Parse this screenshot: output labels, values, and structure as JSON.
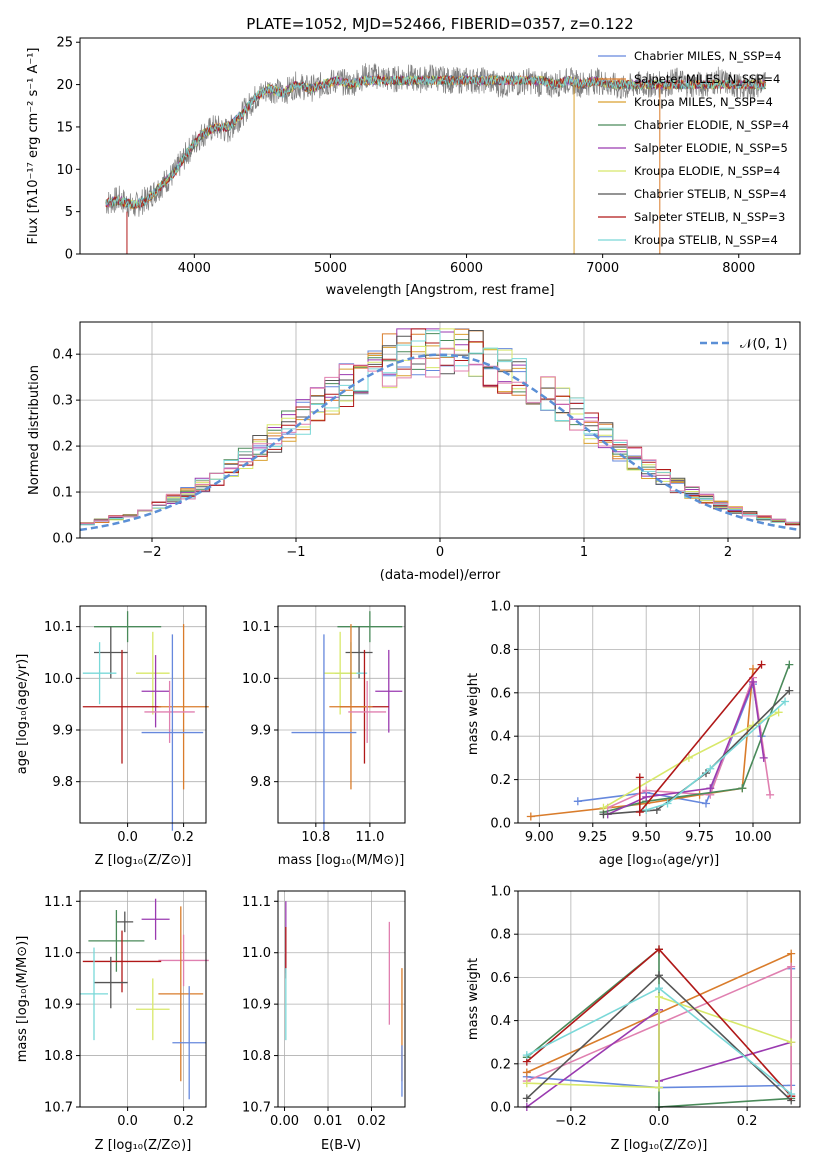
{
  "title": "PLATE=1052, MJD=52466, FIBERID=0357, z=0.122",
  "panels": {
    "spectrum": {
      "xlabel": "wavelength [Angstrom, rest frame]",
      "ylabel": "Flux [fλ10⁻¹⁷ erg cm⁻² s⁻¹ A⁻¹]",
      "xticks": [
        "4000",
        "5000",
        "6000",
        "7000",
        "8000"
      ],
      "yticks": [
        "0",
        "5",
        "10",
        "15",
        "20",
        "25"
      ]
    },
    "residuals": {
      "xlabel": "(data-model)/error",
      "ylabel": "Normed distribution",
      "xticks": [
        "−2",
        "−1",
        "0",
        "1",
        "2"
      ],
      "yticks": [
        "0.0",
        "0.1",
        "0.2",
        "0.3",
        "0.4"
      ],
      "legend_label": "𝒩(0, 1)"
    },
    "age_vs_Z": {
      "xlabel": "Z [log₁₀(Z/Z⊙)]",
      "ylabel": "age  [log₁₀(age/yr)]",
      "xticks": [
        "0.0",
        "0.2"
      ],
      "yticks": [
        "9.8",
        "9.9",
        "10.0",
        "10.1"
      ]
    },
    "age_vs_mass": {
      "xlabel": "mass [log₁₀(M/M⊙)]",
      "xticks": [
        "10.8",
        "11.0"
      ],
      "yticks": [
        "9.8",
        "9.9",
        "10.0",
        "10.1"
      ]
    },
    "weight_vs_age": {
      "xlabel": "age  [log₁₀(age/yr)]",
      "ylabel": "mass weight",
      "xticks": [
        "9.00",
        "9.25",
        "9.50",
        "9.75",
        "10.00"
      ],
      "yticks": [
        "0.0",
        "0.2",
        "0.4",
        "0.6",
        "0.8",
        "1.0"
      ]
    },
    "mass_vs_Z": {
      "xlabel": "Z [log₁₀(Z/Z⊙)]",
      "ylabel": "mass [log₁₀(M/M⊙)]",
      "xticks": [
        "0.0",
        "0.2"
      ],
      "yticks": [
        "10.7",
        "10.8",
        "10.9",
        "11.0",
        "11.1"
      ]
    },
    "mass_vs_ebv": {
      "xlabel": "E(B-V)",
      "xticks": [
        "0.00",
        "0.01",
        "0.02"
      ],
      "yticks": [
        "10.7",
        "10.8",
        "10.9",
        "11.0",
        "11.1"
      ]
    },
    "weight_vs_Z": {
      "xlabel": "Z [log₁₀(Z/Z⊙)]",
      "ylabel": "mass weight",
      "xticks": [
        "−0.2",
        "0.0",
        "0.2"
      ],
      "yticks": [
        "0.0",
        "0.2",
        "0.4",
        "0.6",
        "0.8",
        "1.0"
      ]
    }
  },
  "chart_data": [
    {
      "type": "line",
      "title": "PLATE=1052, MJD=52466, FIBERID=0357, z=0.122",
      "xlabel": "wavelength [Angstrom, rest frame]",
      "ylabel": "Flux [fλ10⁻¹⁷ erg cm⁻² s⁻¹ A⁻¹]",
      "xlim": [
        3160,
        8450
      ],
      "ylim": [
        0,
        25.5
      ],
      "legend_position": "top-right",
      "data_color": "#808080",
      "data": {
        "x": [
          3350,
          3450,
          3550,
          3650,
          3750,
          3850,
          3950,
          4050,
          4150,
          4250,
          4350,
          4450,
          4550,
          4650,
          4750,
          4850,
          4950,
          5050,
          5150,
          5250,
          5350,
          5450,
          5550,
          5650,
          5750,
          5850,
          5950,
          6050,
          6150,
          6250,
          6350,
          6450,
          6550,
          6650,
          6750,
          6850,
          6950,
          7050,
          7150,
          7250,
          7350,
          7450,
          7550,
          7650,
          7750,
          7850,
          7950,
          8050,
          8150,
          8200
        ],
        "y": [
          6.0,
          6.5,
          5.5,
          6.5,
          8.0,
          9.5,
          12.0,
          14.0,
          15.0,
          14.5,
          16.5,
          18.5,
          19.5,
          19.0,
          20.0,
          19.5,
          20.0,
          20.5,
          20.0,
          21.0,
          21.0,
          20.5,
          21.0,
          20.5,
          21.0,
          20.5,
          20.5,
          20.5,
          20.5,
          20.0,
          20.0,
          20.5,
          20.0,
          20.0,
          20.5,
          20.0,
          20.5,
          20.0,
          19.5,
          20.0,
          20.0,
          20.0,
          20.5,
          20.0,
          20.0,
          20.5,
          20.0,
          19.5,
          20.0,
          20.0
        ]
      },
      "series": [
        {
          "name": "Chabrier MILES, N_SSP=4",
          "color": "#6688dd"
        },
        {
          "name": "Salpeter MILES, N_SSP=4",
          "color": "#d97c2b"
        },
        {
          "name": "Kroupa MILES, N_SSP=4",
          "color": "#d9a030"
        },
        {
          "name": "Chabrier ELODIE, N_SSP=4",
          "color": "#4a8a5a"
        },
        {
          "name": "Salpeter ELODIE, N_SSP=5",
          "color": "#9a3ab0"
        },
        {
          "name": "Kroupa ELODIE, N_SSP=4",
          "color": "#d8e86a"
        },
        {
          "name": "Chabrier STELIB, N_SSP=4",
          "color": "#555555"
        },
        {
          "name": "Salpeter STELIB, N_SSP=3",
          "color": "#b01818"
        },
        {
          "name": "Kroupa STELIB, N_SSP=4",
          "color": "#7ad8d8"
        }
      ],
      "model": {
        "x": [
          3350,
          3450,
          3550,
          3650,
          3750,
          3850,
          3950,
          4050,
          4150,
          4250,
          4350,
          4450,
          4550,
          4650,
          4750,
          4850,
          4950,
          5050,
          5150,
          5250,
          5350,
          5450,
          5550,
          5650,
          5750,
          5850,
          5950,
          6050,
          6150,
          6250,
          6350,
          6450,
          6550,
          6650,
          6750,
          6850,
          6950,
          7050,
          7150,
          7250,
          7350,
          7450,
          7550,
          7650,
          7750,
          7850,
          7950,
          8050,
          8150,
          8200
        ],
        "y": [
          6.0,
          6.3,
          5.8,
          6.3,
          8.0,
          9.5,
          12.0,
          14.0,
          15.0,
          15.0,
          16.5,
          18.5,
          19.5,
          19.0,
          20.0,
          19.5,
          20.0,
          20.5,
          20.0,
          20.5,
          20.5,
          20.5,
          20.5,
          20.5,
          20.5,
          20.5,
          20.5,
          20.5,
          20.5,
          20.5,
          20.5,
          20.5,
          20.5,
          20.0,
          20.5,
          20.0,
          20.5,
          20.0,
          20.0,
          20.0,
          20.0,
          20.0,
          20.0,
          20.0,
          20.0,
          20.0,
          20.0,
          20.0,
          20.0,
          20.0
        ]
      }
    },
    {
      "type": "bar",
      "xlabel": "(data-model)/error",
      "ylabel": "Normed distribution",
      "xlim": [
        -2.5,
        2.5
      ],
      "ylim": [
        0,
        0.47
      ],
      "bin_width": 0.1,
      "curve": {
        "name": "𝒩(0, 1)",
        "mu": 0,
        "sigma": 1,
        "color": "#5b8fd6",
        "style": "dashed"
      },
      "series_colors": [
        "#6688dd",
        "#d97c2b",
        "#d9a030",
        "#4a8a5a",
        "#9a3ab0",
        "#d8e86a",
        "#555555",
        "#b01818",
        "#7ad8d8",
        "#e080b0"
      ]
    },
    {
      "type": "scatter",
      "xlabel": "Z [log₁₀(Z/Z⊙)]",
      "ylabel": "age  [log₁₀(age/yr)]",
      "xlim": [
        -0.17,
        0.28
      ],
      "ylim": [
        9.72,
        10.14
      ],
      "points": [
        {
          "x": 0.0,
          "y": 10.1,
          "xerr": 0.12,
          "yerr": 0.03,
          "color": "#4a8a5a"
        },
        {
          "x": -0.06,
          "y": 10.05,
          "xerr": 0.06,
          "yerr": 0.05,
          "color": "#555555"
        },
        {
          "x": -0.1,
          "y": 10.01,
          "xerr": 0.06,
          "yerr": 0.06,
          "color": "#7ad8d8"
        },
        {
          "x": 0.09,
          "y": 10.01,
          "xerr": 0.06,
          "yerr": 0.08,
          "color": "#d8e86a"
        },
        {
          "x": 0.1,
          "y": 9.975,
          "xerr": 0.05,
          "yerr": 0.07,
          "color": "#9a3ab0"
        },
        {
          "x": -0.02,
          "y": 9.945,
          "xerr": 0.14,
          "yerr": 0.11,
          "color": "#b01818"
        },
        {
          "x": 0.2,
          "y": 9.945,
          "xerr": 0.09,
          "yerr": 0.16,
          "color": "#d97c2b"
        },
        {
          "x": 0.15,
          "y": 9.935,
          "xerr": 0.09,
          "yerr": 0.06,
          "color": "#e080b0"
        },
        {
          "x": 0.16,
          "y": 9.895,
          "xerr": 0.11,
          "yerr": 0.19,
          "color": "#6688dd"
        }
      ]
    },
    {
      "type": "scatter",
      "xlabel": "mass [log₁₀(M/M⊙)]",
      "xlim": [
        10.66,
        11.13
      ],
      "ylim": [
        9.72,
        10.14
      ],
      "points": [
        {
          "x": 11.0,
          "y": 10.1,
          "xerr": 0.12,
          "yerr": 0.03,
          "color": "#4a8a5a"
        },
        {
          "x": 10.96,
          "y": 10.05,
          "xerr": 0.05,
          "yerr": 0.05,
          "color": "#555555"
        },
        {
          "x": 10.93,
          "y": 10.01,
          "xerr": 0.06,
          "yerr": 0.06,
          "color": "#7ad8d8"
        },
        {
          "x": 10.89,
          "y": 10.01,
          "xerr": 0.06,
          "yerr": 0.08,
          "color": "#d8e86a"
        },
        {
          "x": 11.07,
          "y": 9.975,
          "xerr": 0.05,
          "yerr": 0.08,
          "color": "#9a3ab0"
        },
        {
          "x": 10.98,
          "y": 9.945,
          "xerr": 0.09,
          "yerr": 0.11,
          "color": "#b01818"
        },
        {
          "x": 10.93,
          "y": 9.945,
          "xerr": 0.08,
          "yerr": 0.16,
          "color": "#d97c2b"
        },
        {
          "x": 10.99,
          "y": 9.935,
          "xerr": 0.07,
          "yerr": 0.06,
          "color": "#e080b0"
        },
        {
          "x": 10.83,
          "y": 9.895,
          "xerr": 0.12,
          "yerr": 0.19,
          "color": "#6688dd"
        }
      ]
    },
    {
      "type": "line",
      "xlabel": "age  [log₁₀(age/yr)]",
      "ylabel": "mass weight",
      "xlim": [
        8.9,
        10.22
      ],
      "ylim": [
        0,
        1
      ],
      "series": [
        {
          "color": "#6688dd",
          "x": [
            9.18,
            9.5,
            9.78,
            10.0,
            10.04
          ],
          "y": [
            0.1,
            0.14,
            0.09,
            0.64,
            0.4
          ]
        },
        {
          "color": "#d97c2b",
          "x": [
            8.96,
            9.5,
            9.75,
            9.95,
            10.0
          ],
          "y": [
            0.03,
            0.09,
            0.13,
            0.16,
            0.71
          ]
        },
        {
          "color": "#e080b0",
          "x": [
            9.32,
            9.5,
            9.8,
            10.0,
            10.08
          ],
          "y": [
            0.07,
            0.15,
            0.13,
            0.67,
            0.13
          ]
        },
        {
          "color": "#4a8a5a",
          "x": [
            9.3,
            9.5,
            9.95,
            10.17
          ],
          "y": [
            0.05,
            0.1,
            0.16,
            0.73
          ]
        },
        {
          "color": "#9a3ab0",
          "x": [
            9.32,
            9.5,
            9.8,
            10.0,
            10.05
          ],
          "y": [
            0.04,
            0.12,
            0.16,
            0.65,
            0.3
          ]
        },
        {
          "color": "#d8e86a",
          "x": [
            9.3,
            9.7,
            10.0,
            10.12
          ],
          "y": [
            0.07,
            0.3,
            0.45,
            0.51
          ]
        },
        {
          "color": "#555555",
          "x": [
            9.3,
            9.55,
            9.78,
            10.17
          ],
          "y": [
            0.04,
            0.06,
            0.23,
            0.61
          ]
        },
        {
          "color": "#b01818",
          "x": [
            9.47,
            9.47,
            10.04
          ],
          "y": [
            0.21,
            0.05,
            0.73
          ]
        },
        {
          "color": "#7ad8d8",
          "x": [
            9.5,
            9.6,
            9.8,
            10.15
          ],
          "y": [
            0.06,
            0.09,
            0.25,
            0.56
          ]
        }
      ]
    },
    {
      "type": "scatter",
      "xlabel": "Z [log₁₀(Z/Z⊙)]",
      "ylabel": "mass [log₁₀(M/M⊙)]",
      "xlim": [
        -0.17,
        0.28
      ],
      "ylim": [
        10.7,
        11.12
      ],
      "points": [
        {
          "x": -0.01,
          "y": 11.06,
          "xerr": 0.03,
          "yerr": 0.02,
          "color": "#555555"
        },
        {
          "x": 0.1,
          "y": 11.065,
          "xerr": 0.05,
          "yerr": 0.04,
          "color": "#9a3ab0"
        },
        {
          "x": -0.04,
          "y": 11.023,
          "xerr": 0.1,
          "yerr": 0.06,
          "color": "#4a8a5a"
        },
        {
          "x": 0.2,
          "y": 10.985,
          "xerr": 0.09,
          "yerr": 0.05,
          "color": "#e080b0"
        },
        {
          "x": -0.02,
          "y": 10.983,
          "xerr": 0.14,
          "yerr": 0.06,
          "color": "#b01818"
        },
        {
          "x": -0.06,
          "y": 10.942,
          "xerr": 0.06,
          "yerr": 0.05,
          "color": "#555555"
        },
        {
          "x": 0.19,
          "y": 10.92,
          "xerr": 0.08,
          "yerr": 0.17,
          "color": "#d97c2b"
        },
        {
          "x": -0.12,
          "y": 10.92,
          "xerr": 0.05,
          "yerr": 0.09,
          "color": "#7ad8d8"
        },
        {
          "x": 0.09,
          "y": 10.89,
          "xerr": 0.06,
          "yerr": 0.06,
          "color": "#d8e86a"
        },
        {
          "x": 0.22,
          "y": 10.825,
          "xerr": 0.06,
          "yerr": 0.11,
          "color": "#6688dd"
        }
      ]
    },
    {
      "type": "scatter",
      "xlabel": "E(B-V)",
      "xlim": [
        -0.0015,
        0.0277
      ],
      "ylim": [
        10.7,
        11.12
      ],
      "points": [
        {
          "x": 0.0003,
          "y": 11.03,
          "yerr": 0.07,
          "color": "#9a3ab0"
        },
        {
          "x": 0.0003,
          "y": 11.0,
          "yerr": 0.05,
          "color": "#b01818"
        },
        {
          "x": 0.0003,
          "y": 10.9,
          "yerr": 0.07,
          "color": "#7ad8d8"
        },
        {
          "x": 0.0241,
          "y": 10.96,
          "yerr": 0.1,
          "color": "#e080b0"
        },
        {
          "x": 0.027,
          "y": 10.86,
          "yerr": 0.11,
          "color": "#d97c2b"
        },
        {
          "x": 0.027,
          "y": 10.77,
          "yerr": 0.05,
          "color": "#6688dd"
        }
      ]
    },
    {
      "type": "line",
      "xlabel": "Z [log₁₀(Z/Z⊙)]",
      "ylabel": "mass weight",
      "xlim": [
        -0.32,
        0.32
      ],
      "ylim": [
        0,
        1
      ],
      "series": [
        {
          "color": "#6688dd",
          "x": [
            -0.3,
            0.0,
            0.3,
            0.3
          ],
          "y": [
            0.14,
            0.09,
            0.1,
            0.64
          ]
        },
        {
          "color": "#d97c2b",
          "x": [
            -0.3,
            0.3,
            0.3
          ],
          "y": [
            0.16,
            0.71,
            0.05
          ]
        },
        {
          "color": "#e080b0",
          "x": [
            -0.3,
            0.3,
            0.3
          ],
          "y": [
            0.12,
            0.65,
            0.05
          ]
        },
        {
          "color": "#4a8a5a",
          "x": [
            -0.3,
            0.0,
            0.0,
            0.3
          ],
          "y": [
            0.23,
            0.73,
            0.0,
            0.04
          ]
        },
        {
          "color": "#9a3ab0",
          "x": [
            -0.3,
            0.0,
            0.0,
            0.3
          ],
          "y": [
            0.0,
            0.45,
            0.12,
            0.3
          ]
        },
        {
          "color": "#d8e86a",
          "x": [
            -0.3,
            0.0,
            0.0,
            0.3
          ],
          "y": [
            0.11,
            0.09,
            0.51,
            0.3
          ]
        },
        {
          "color": "#555555",
          "x": [
            -0.3,
            0.0,
            0.3
          ],
          "y": [
            0.04,
            0.61,
            0.03
          ]
        },
        {
          "color": "#b01818",
          "x": [
            -0.3,
            0.0,
            0.3
          ],
          "y": [
            0.21,
            0.73,
            0.05
          ]
        },
        {
          "color": "#7ad8d8",
          "x": [
            -0.3,
            0.0,
            0.3
          ],
          "y": [
            0.24,
            0.55,
            0.06
          ]
        }
      ]
    }
  ]
}
